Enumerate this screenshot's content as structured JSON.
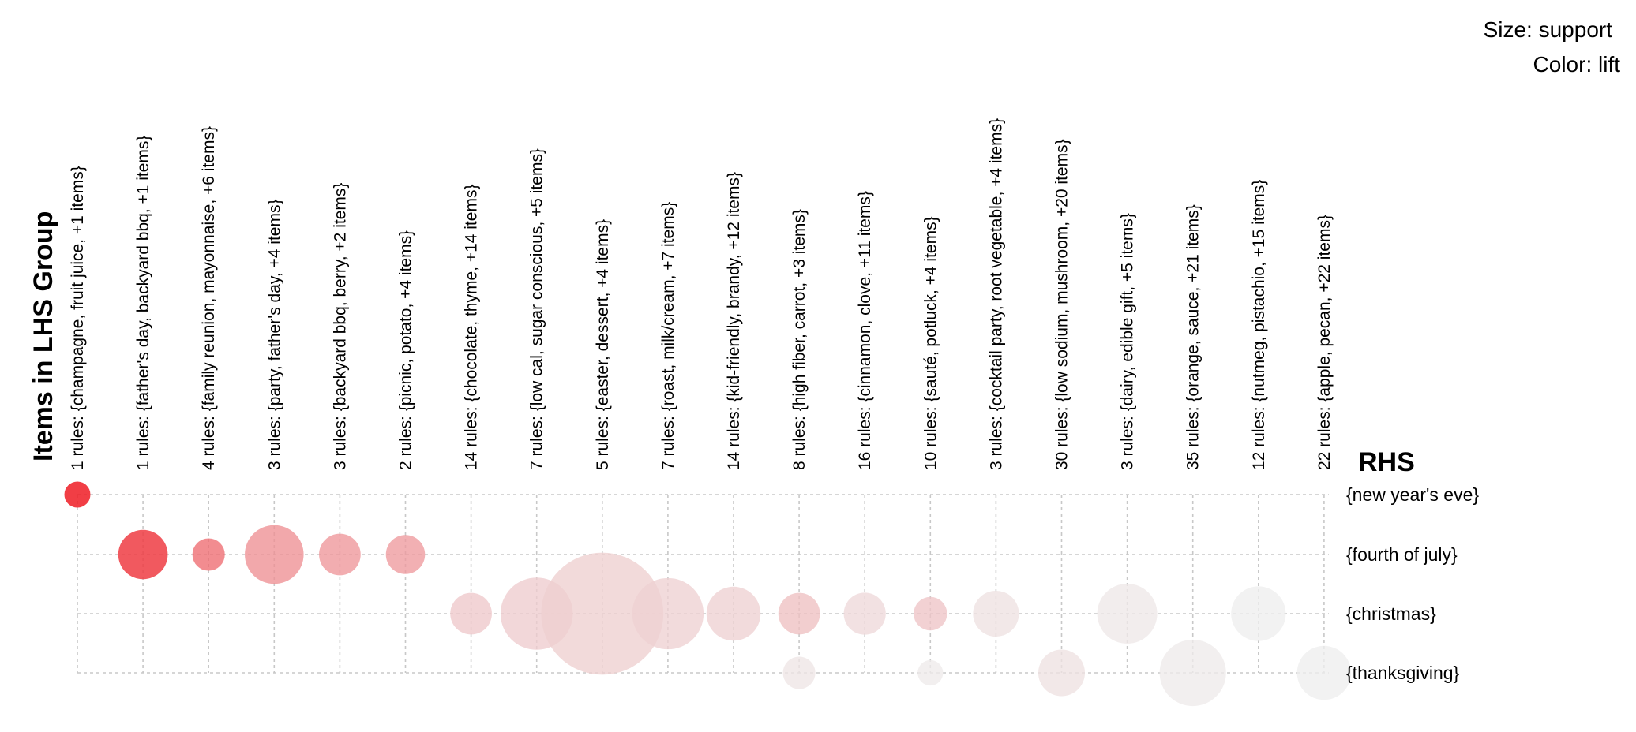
{
  "chart_data": {
    "type": "scatter",
    "title": "",
    "xlabel": "Items in LHS Group",
    "ylabel": "RHS",
    "legend": {
      "size_label": "Size: support",
      "color_label": "Color: lift",
      "placement": "top-right"
    },
    "color_scale": {
      "low": "#eeeeee",
      "high": "#ee1c25"
    },
    "lhs_groups": [
      "1 rules: {champagne, fruit juice, +1 items}",
      "1 rules: {father's day, backyard bbq, +1 items}",
      "4 rules: {family reunion, mayonnaise, +6 items}",
      "3 rules: {party, father's day, +4 items}",
      "3 rules: {backyard bbq, berry, +2 items}",
      "2 rules: {picnic, potato, +4 items}",
      "14 rules: {chocolate, thyme, +14 items}",
      "7 rules: {low cal, sugar conscious, +5 items}",
      "5 rules: {easter, dessert, +4 items}",
      "7 rules: {roast, milk/cream, +7 items}",
      "14 rules: {kid-friendly, brandy, +12 items}",
      "8 rules: {high fiber, carrot, +3 items}",
      "16 rules: {cinnamon, clove, +11 items}",
      "10 rules: {sauté, potluck, +4 items}",
      "3 rules: {cocktail party, root vegetable, +4 items}",
      "30 rules: {low sodium, mushroom, +20 items}",
      "3 rules: {dairy, edible gift, +5 items}",
      "35 rules: {orange, sauce, +21 items}",
      "12 rules: {nutmeg, pistachio, +15 items}",
      "22 rules: {apple, pecan, +22 items}"
    ],
    "rhs_items": [
      "{new year's eve}",
      "{fourth of july}",
      "{christmas}",
      "{thanksgiving}"
    ],
    "points": [
      {
        "lhs": 0,
        "rhs": 0,
        "size": 1.0,
        "lift": 1.0
      },
      {
        "lhs": 1,
        "rhs": 1,
        "size": 3.6,
        "lift": 0.85
      },
      {
        "lhs": 2,
        "rhs": 1,
        "size": 1.55,
        "lift": 0.62
      },
      {
        "lhs": 3,
        "rhs": 1,
        "size": 5.1,
        "lift": 0.45
      },
      {
        "lhs": 4,
        "rhs": 1,
        "size": 2.55,
        "lift": 0.42
      },
      {
        "lhs": 5,
        "rhs": 1,
        "size": 2.25,
        "lift": 0.4
      },
      {
        "lhs": 6,
        "rhs": 2,
        "size": 2.55,
        "lift": 0.18
      },
      {
        "lhs": 7,
        "rhs": 2,
        "size": 7.7,
        "lift": 0.16
      },
      {
        "lhs": 8,
        "rhs": 2,
        "size": 22.0,
        "lift": 0.15
      },
      {
        "lhs": 9,
        "rhs": 2,
        "size": 7.5,
        "lift": 0.14
      },
      {
        "lhs": 10,
        "rhs": 2,
        "size": 4.3,
        "lift": 0.14
      },
      {
        "lhs": 11,
        "rhs": 2,
        "size": 2.55,
        "lift": 0.22
      },
      {
        "lhs": 12,
        "rhs": 2,
        "size": 2.6,
        "lift": 0.1
      },
      {
        "lhs": 13,
        "rhs": 2,
        "size": 1.65,
        "lift": 0.2
      },
      {
        "lhs": 14,
        "rhs": 2,
        "size": 3.1,
        "lift": 0.06
      },
      {
        "lhs": 16,
        "rhs": 2,
        "size": 5.3,
        "lift": 0.03
      },
      {
        "lhs": 18,
        "rhs": 2,
        "size": 4.4,
        "lift": 0.0
      },
      {
        "lhs": 11,
        "rhs": 3,
        "size": 1.55,
        "lift": 0.04
      },
      {
        "lhs": 13,
        "rhs": 3,
        "size": 0.95,
        "lift": 0.02
      },
      {
        "lhs": 15,
        "rhs": 3,
        "size": 3.2,
        "lift": 0.06
      },
      {
        "lhs": 17,
        "rhs": 3,
        "size": 6.5,
        "lift": 0.02
      },
      {
        "lhs": 19,
        "rhs": 3,
        "size": 4.3,
        "lift": 0.0
      }
    ]
  }
}
